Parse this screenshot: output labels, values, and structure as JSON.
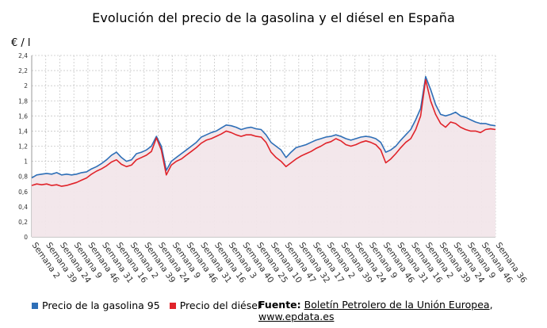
{
  "title": "Evolución del precio de la gasolina y el diésel en España",
  "unit_label": "€ / l",
  "legend": [
    {
      "name": "Precio de la gasolina 95",
      "color": "#2e6fb7"
    },
    {
      "name": "Precio del diésel",
      "color": "#e0232a"
    }
  ],
  "source": {
    "label": "Fuente:",
    "text1": "Boletín Petrolero de la Unión Europea",
    "sep": ", ",
    "text2": "www.epdata.es"
  },
  "chart_data": {
    "type": "line",
    "title": "Evolución del precio de la gasolina y el diésel en España",
    "ylabel": "€ / l",
    "ylim": [
      0,
      2.4
    ],
    "yticks": [
      "0",
      "0,2",
      "0,4",
      "0,6",
      "0,8",
      "1",
      "1,2",
      "1,4",
      "1,6",
      "1,8",
      "2",
      "2,2",
      "2,4"
    ],
    "xticks": [
      "Semana 2",
      "Semana 39",
      "Semana 24",
      "Semana 9",
      "Semana 46",
      "Semana 31",
      "Semana 16",
      "Semana 2",
      "Semana 39",
      "Semana 24",
      "Semana 9",
      "Semana 46",
      "Semana 31",
      "Semana 16",
      "Semana 3",
      "Semana 40",
      "Semana 25",
      "Semana 10",
      "Semana 47",
      "Semana 32",
      "Semana 17",
      "Semana 2",
      "Semana 39",
      "Semana 24",
      "Semana 9",
      "Semana 46",
      "Semana 31",
      "Semana 16",
      "Semana 2",
      "Semana 39",
      "Semana 24",
      "Semana 9",
      "Semana 46",
      "Semana 36"
    ],
    "grid": true,
    "area_fill_color": "#f2e6ea",
    "series": [
      {
        "name": "Precio de la gasolina 95",
        "color": "#2e6fb7",
        "values": [
          0.78,
          0.82,
          0.83,
          0.84,
          0.83,
          0.85,
          0.82,
          0.83,
          0.82,
          0.83,
          0.85,
          0.86,
          0.9,
          0.93,
          0.97,
          1.02,
          1.08,
          1.12,
          1.05,
          1.0,
          1.02,
          1.1,
          1.12,
          1.15,
          1.2,
          1.33,
          1.2,
          0.88,
          1.0,
          1.05,
          1.1,
          1.15,
          1.2,
          1.25,
          1.32,
          1.35,
          1.38,
          1.4,
          1.44,
          1.48,
          1.47,
          1.45,
          1.42,
          1.44,
          1.45,
          1.43,
          1.42,
          1.35,
          1.25,
          1.2,
          1.15,
          1.05,
          1.12,
          1.18,
          1.2,
          1.22,
          1.25,
          1.28,
          1.3,
          1.32,
          1.33,
          1.35,
          1.33,
          1.3,
          1.28,
          1.3,
          1.32,
          1.33,
          1.32,
          1.3,
          1.25,
          1.12,
          1.15,
          1.2,
          1.28,
          1.35,
          1.42,
          1.55,
          1.7,
          2.12,
          1.95,
          1.75,
          1.62,
          1.6,
          1.62,
          1.65,
          1.6,
          1.58,
          1.55,
          1.52,
          1.5,
          1.5,
          1.48,
          1.47
        ]
      },
      {
        "name": "Precio del diésel",
        "color": "#e0232a",
        "values": [
          0.68,
          0.7,
          0.69,
          0.7,
          0.68,
          0.69,
          0.67,
          0.68,
          0.7,
          0.72,
          0.75,
          0.78,
          0.83,
          0.87,
          0.9,
          0.94,
          0.99,
          1.02,
          0.96,
          0.93,
          0.95,
          1.02,
          1.05,
          1.08,
          1.13,
          1.31,
          1.15,
          0.82,
          0.95,
          1.0,
          1.03,
          1.08,
          1.13,
          1.18,
          1.24,
          1.28,
          1.3,
          1.33,
          1.36,
          1.4,
          1.38,
          1.35,
          1.33,
          1.35,
          1.35,
          1.33,
          1.32,
          1.25,
          1.12,
          1.05,
          1.0,
          0.93,
          0.98,
          1.03,
          1.07,
          1.1,
          1.13,
          1.17,
          1.2,
          1.24,
          1.26,
          1.3,
          1.27,
          1.22,
          1.2,
          1.22,
          1.25,
          1.27,
          1.25,
          1.22,
          1.15,
          0.98,
          1.03,
          1.1,
          1.18,
          1.25,
          1.3,
          1.42,
          1.6,
          2.08,
          1.8,
          1.62,
          1.5,
          1.45,
          1.52,
          1.5,
          1.45,
          1.42,
          1.4,
          1.4,
          1.38,
          1.42,
          1.43,
          1.42
        ]
      }
    ]
  }
}
